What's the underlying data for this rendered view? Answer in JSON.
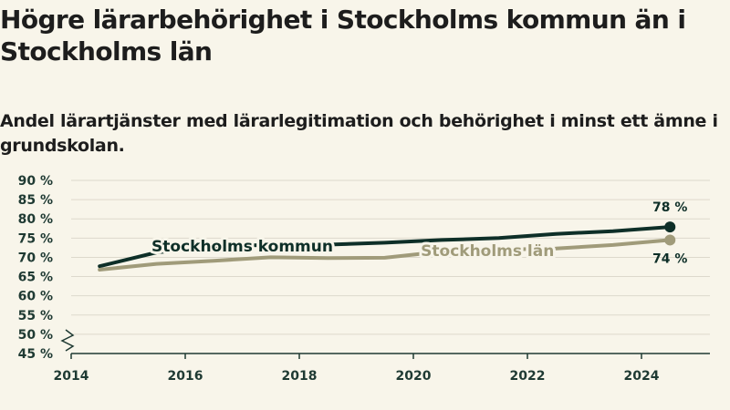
{
  "title": "Högre lärarbehörighet i Stockholms kommun än i Stockholms län",
  "subtitle": "Andel lärartjänster med lärarlegitimation och behörighet i minst ett ämne i grundskolan.",
  "colors": {
    "background": "#f8f5ea",
    "kommun": "#0e2f28",
    "lan": "#a09b7a",
    "grid": "#ddd9cc",
    "axis": "#1f3a33"
  },
  "chart_data": {
    "type": "line",
    "title": "Högre lärarbehörighet i Stockholms kommun än i Stockholms län",
    "subtitle": "Andel lärartjänster med lärarlegitimation och behörighet i minst ett ämne i grundskolan.",
    "xlabel": "",
    "ylabel": "",
    "x": [
      2014.5,
      2015.5,
      2016.5,
      2017.5,
      2018.5,
      2019.5,
      2020.5,
      2021.5,
      2022.5,
      2023.5,
      2024.5
    ],
    "x_ticks": [
      2014,
      2016,
      2018,
      2020,
      2022,
      2024
    ],
    "y_ticks": [
      45,
      50,
      55,
      60,
      65,
      70,
      75,
      80,
      85,
      90
    ],
    "y_tick_labels": [
      "45 %",
      "50 %",
      "55 %",
      "60 %",
      "65 %",
      "70 %",
      "75 %",
      "80 %",
      "85 %",
      "90 %"
    ],
    "xlim": [
      2014,
      2025.2
    ],
    "ylim": [
      45,
      90
    ],
    "axis_break": true,
    "grid": true,
    "series": [
      {
        "name": "Stockholms kommun",
        "color": "#0e2f28",
        "values": [
          67.7,
          71.3,
          72.7,
          73.3,
          73.3,
          73.8,
          74.5,
          75.0,
          76.1,
          76.8,
          77.9
        ],
        "end_label": "78 %"
      },
      {
        "name": "Stockholms län",
        "color": "#a09b7a",
        "values": [
          66.8,
          68.3,
          69.1,
          70.0,
          69.8,
          69.9,
          71.5,
          72.0,
          72.3,
          73.2,
          74.5
        ],
        "end_label": "74 %"
      }
    ]
  }
}
